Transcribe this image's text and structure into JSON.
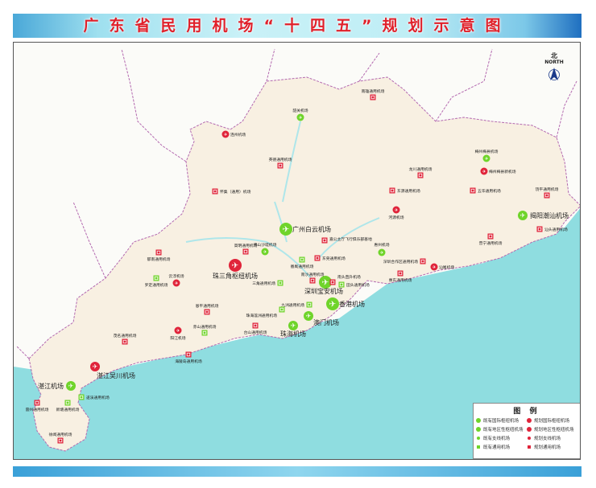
{
  "title": "广东省民用机场“十四五”规划示意图",
  "compass": {
    "label_cn": "北",
    "label_en": "NORTH"
  },
  "colors": {
    "existing": "#6fd42a",
    "planned": "#e0243a",
    "land": "#f8f0e2",
    "ocean": "#8fdde0",
    "border": "#b46ab0",
    "title": "#e0202a"
  },
  "legend": {
    "title": "图 例",
    "items": [
      {
        "type": "existing_intl_hub",
        "label": "既有国际枢纽机场"
      },
      {
        "type": "planned_intl_hub",
        "label": "规划国际枢纽机场"
      },
      {
        "type": "existing_regional_hub",
        "label": "既有地区性枢纽机场"
      },
      {
        "type": "planned_regional_hub",
        "label": "规划地区性枢纽机场"
      },
      {
        "type": "existing_feeder",
        "label": "既有支线机场"
      },
      {
        "type": "planned_feeder",
        "label": "规划支线机场"
      },
      {
        "type": "existing_general",
        "label": "既有通用机场"
      },
      {
        "type": "planned_general",
        "label": "规划通用机场"
      }
    ]
  },
  "airports": [
    {
      "name": "广州白云机场",
      "type": "existing_intl_hub"
    },
    {
      "name": "深圳宝安机场",
      "type": "existing_intl_hub"
    },
    {
      "name": "香港机场",
      "type": "existing_intl_hub"
    },
    {
      "name": "珠三角枢纽机场",
      "type": "planned_intl_hub"
    },
    {
      "name": "澳门机场",
      "type": "existing_regional_hub"
    },
    {
      "name": "珠海机场",
      "type": "existing_regional_hub"
    },
    {
      "name": "揭阳潮汕机场",
      "type": "existing_regional_hub"
    },
    {
      "name": "湛江吴川机场",
      "type": "planned_regional_hub"
    },
    {
      "name": "湛江机场",
      "type": "existing_regional_hub"
    },
    {
      "name": "惠州机场",
      "type": "existing_feeder"
    },
    {
      "name": "梅州梅县机场",
      "type": "existing_feeder"
    },
    {
      "name": "韶关机场",
      "type": "existing_feeder"
    },
    {
      "name": "佛山沙堤机场",
      "type": "existing_feeder"
    },
    {
      "name": "梅州梅县新机场",
      "type": "planned_feeder"
    },
    {
      "name": "连州机场",
      "type": "planned_feeder"
    },
    {
      "name": "河源机场",
      "type": "planned_feeder"
    },
    {
      "name": "汕尾机场",
      "type": "planned_feeder"
    },
    {
      "name": "云浮机场",
      "type": "planned_feeder"
    },
    {
      "name": "阳江机场",
      "type": "planned_feeder"
    },
    {
      "name": "南雄通用机场",
      "type": "planned_general"
    },
    {
      "name": "英德通用机场",
      "type": "planned_general"
    },
    {
      "name": "怀集（通用）机场",
      "type": "planned_general"
    },
    {
      "name": "龙川通用机场",
      "type": "planned_general"
    },
    {
      "name": "东源通用机场",
      "type": "planned_general"
    },
    {
      "name": "五华通用机场",
      "type": "planned_general"
    },
    {
      "name": "饶平通用机场",
      "type": "planned_general"
    },
    {
      "name": "汕头通用机场",
      "type": "planned_general"
    },
    {
      "name": "普宁通用机场",
      "type": "planned_general"
    },
    {
      "name": "深圳合作区通用机场",
      "type": "planned_general"
    },
    {
      "name": "惠东通用机场",
      "type": "planned_general"
    },
    {
      "name": "高明通用机场",
      "type": "planned_general"
    },
    {
      "name": "东莞通用机场",
      "type": "planned_general"
    },
    {
      "name": "嘉公主厅飞行俱乐部基地",
      "type": "planned_general"
    },
    {
      "name": "南沙通用机场",
      "type": "planned_general"
    },
    {
      "name": "南头直升机场",
      "type": "planned_general"
    },
    {
      "name": "恩平通用机场",
      "type": "planned_general"
    },
    {
      "name": "台山通用机场",
      "type": "planned_general"
    },
    {
      "name": "郁南通用机场",
      "type": "planned_general"
    },
    {
      "name": "茂名通用机场",
      "type": "planned_general"
    },
    {
      "name": "海陵岛通用机场",
      "type": "planned_general"
    },
    {
      "name": "雷州通用机场",
      "type": "planned_general"
    },
    {
      "name": "徐闻通用机场",
      "type": "planned_general"
    },
    {
      "name": "罗定通用机场",
      "type": "existing_general"
    },
    {
      "name": "番禺通用机场",
      "type": "existing_general"
    },
    {
      "name": "三角通用机场",
      "type": "existing_general"
    },
    {
      "name": "九洲通用机场",
      "type": "existing_general"
    },
    {
      "name": "珠海莲洲通用机场",
      "type": "existing_general"
    },
    {
      "name": "赤山通用机场",
      "type": "existing_general"
    },
    {
      "name": "田头通用机场",
      "type": "existing_general"
    },
    {
      "name": "遂溪通用机场",
      "type": "existing_general"
    },
    {
      "name": "新塘通用机场",
      "type": "existing_general"
    }
  ]
}
